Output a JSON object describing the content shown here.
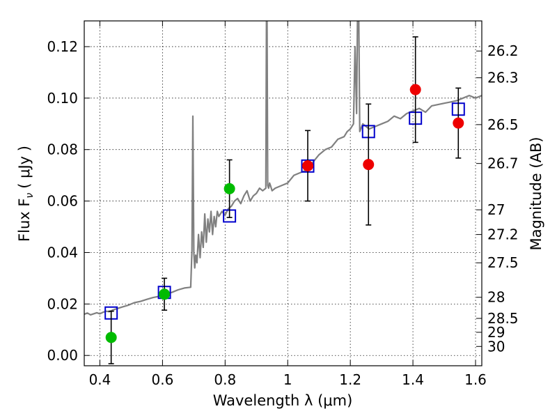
{
  "chart_data": {
    "type": "scatter",
    "title": "",
    "xlabel": "Wavelength  λ (μm)",
    "ylabel": "Flux  F",
    "ylabel_sub": "ν",
    "ylabel_unit": "( μJy )",
    "ylabel_right": "Magnitude (AB)",
    "xlim": [
      0.35,
      1.62
    ],
    "ylim": [
      -0.004,
      0.13
    ],
    "grid": true,
    "x_ticks": [
      {
        "value": 0.4,
        "label": "0.4"
      },
      {
        "value": 0.6,
        "label": "0.6"
      },
      {
        "value": 0.8,
        "label": "0.8"
      },
      {
        "value": 1.0,
        "label": "1"
      },
      {
        "value": 1.2,
        "label": "1.2"
      },
      {
        "value": 1.4,
        "label": "1.4"
      },
      {
        "value": 1.6,
        "label": "1.6"
      }
    ],
    "y_ticks": [
      {
        "value": 0.0,
        "label": "0.00"
      },
      {
        "value": 0.02,
        "label": "0.02"
      },
      {
        "value": 0.04,
        "label": "0.04"
      },
      {
        "value": 0.06,
        "label": "0.06"
      },
      {
        "value": 0.08,
        "label": "0.08"
      },
      {
        "value": 0.1,
        "label": "0.10"
      },
      {
        "value": 0.12,
        "label": "0.12"
      }
    ],
    "right_ticks": [
      {
        "flux": 0.1183,
        "label": "26.2"
      },
      {
        "flux": 0.1079,
        "label": "26.3"
      },
      {
        "flux": 0.0897,
        "label": "26.5"
      },
      {
        "flux": 0.0746,
        "label": "26.7"
      },
      {
        "flux": 0.0566,
        "label": "27"
      },
      {
        "flux": 0.047,
        "label": "27.2"
      },
      {
        "flux": 0.036,
        "label": "27.5"
      },
      {
        "flux": 0.0226,
        "label": "28"
      },
      {
        "flux": 0.0144,
        "label": "28.5"
      },
      {
        "flux": 0.009,
        "label": "29"
      },
      {
        "flux": 0.0035,
        "label": "30"
      }
    ],
    "colors": {
      "spectrum": "#808080",
      "model": "#0000cc",
      "green": "#00bb00",
      "red": "#ee0000",
      "errorbar": "#000000"
    },
    "series": [
      {
        "name": "model spectrum",
        "kind": "line",
        "x": [
          0.35,
          0.36,
          0.37,
          0.38,
          0.39,
          0.4,
          0.41,
          0.42,
          0.43,
          0.44,
          0.45,
          0.47,
          0.49,
          0.51,
          0.53,
          0.55,
          0.57,
          0.59,
          0.61,
          0.63,
          0.65,
          0.67,
          0.69,
          0.694,
          0.697,
          0.7,
          0.703,
          0.706,
          0.71,
          0.715,
          0.72,
          0.725,
          0.73,
          0.735,
          0.74,
          0.745,
          0.75,
          0.755,
          0.76,
          0.765,
          0.77,
          0.775,
          0.78,
          0.79,
          0.8,
          0.81,
          0.82,
          0.83,
          0.84,
          0.85,
          0.86,
          0.87,
          0.88,
          0.89,
          0.9,
          0.91,
          0.92,
          0.93,
          0.933,
          0.936,
          0.939,
          0.942,
          0.945,
          0.95,
          0.96,
          0.98,
          1.0,
          1.02,
          1.04,
          1.06,
          1.08,
          1.1,
          1.12,
          1.14,
          1.16,
          1.18,
          1.19,
          1.2,
          1.21,
          1.215,
          1.22,
          1.225,
          1.23,
          1.24,
          1.26,
          1.28,
          1.3,
          1.32,
          1.34,
          1.36,
          1.38,
          1.4,
          1.42,
          1.44,
          1.46,
          1.48,
          1.5,
          1.52,
          1.54,
          1.56,
          1.58,
          1.6,
          1.62
        ],
        "y": [
          0.016,
          0.0165,
          0.0158,
          0.0162,
          0.0166,
          0.0162,
          0.0168,
          0.0172,
          0.017,
          0.0176,
          0.018,
          0.0188,
          0.0195,
          0.0205,
          0.021,
          0.0218,
          0.0225,
          0.023,
          0.024,
          0.0245,
          0.0255,
          0.0262,
          0.0265,
          0.041,
          0.093,
          0.04,
          0.034,
          0.039,
          0.036,
          0.047,
          0.038,
          0.048,
          0.042,
          0.055,
          0.044,
          0.053,
          0.048,
          0.056,
          0.047,
          0.054,
          0.05,
          0.056,
          0.054,
          0.056,
          0.0545,
          0.057,
          0.058,
          0.06,
          0.061,
          0.059,
          0.062,
          0.064,
          0.06,
          0.062,
          0.063,
          0.065,
          0.064,
          0.065,
          0.16,
          0.066,
          0.065,
          0.067,
          0.066,
          0.064,
          0.065,
          0.066,
          0.067,
          0.07,
          0.071,
          0.072,
          0.075,
          0.078,
          0.08,
          0.081,
          0.084,
          0.085,
          0.087,
          0.088,
          0.09,
          0.12,
          0.094,
          0.16,
          0.087,
          0.09,
          0.088,
          0.089,
          0.09,
          0.091,
          0.093,
          0.092,
          0.094,
          0.095,
          0.096,
          0.0945,
          0.097,
          0.0975,
          0.098,
          0.0985,
          0.099,
          0.1,
          0.101,
          0.1,
          0.101
        ]
      },
      {
        "name": "model photometry",
        "kind": "open-square",
        "x": [
          0.436,
          0.606,
          0.814,
          1.064,
          1.258,
          1.408,
          1.545
        ],
        "y": [
          0.0165,
          0.0245,
          0.0542,
          0.0736,
          0.087,
          0.0922,
          0.0957
        ]
      },
      {
        "name": "observed (green)",
        "kind": "filled-circle",
        "x": [
          0.436,
          0.606,
          0.814
        ],
        "y": [
          0.007,
          0.0238,
          0.0648
        ],
        "yerr": [
          0.0102,
          0.0062,
          0.0112
        ]
      },
      {
        "name": "observed (red)",
        "kind": "filled-circle",
        "x": [
          1.064,
          1.258,
          1.408,
          1.545
        ],
        "y": [
          0.0737,
          0.0742,
          0.1033,
          0.0903
        ],
        "yerr": [
          0.0137,
          0.0235,
          0.0205,
          0.0136
        ]
      }
    ]
  }
}
